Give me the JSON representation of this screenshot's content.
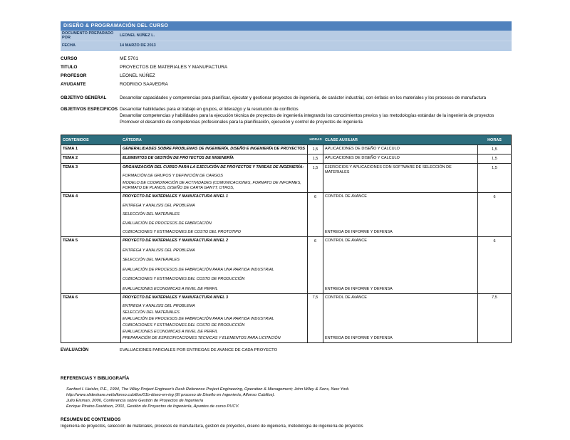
{
  "header": {
    "title": "DISEÑO & PROGRAMACIÓN DEL CURSO",
    "prepared_by_label": "DOCUMENTO PREPARADO POR",
    "prepared_by_value": "LEONEL NÚÑEZ L.",
    "date_label": "FECHA",
    "date_value": "14 MARZO DE 2013"
  },
  "course_info": [
    {
      "label": "CURSO",
      "value": "ME 5701"
    },
    {
      "label": "TITULO",
      "value": "PROYECTOS DE MATERIALES Y MANUFACTURA"
    },
    {
      "label": "PROFESOR",
      "value": "LEONEL NÚÑEZ"
    },
    {
      "label": "AYUDANTE",
      "value": "RODRIGO SAAVEDRA"
    }
  ],
  "objectives": {
    "general_label": "OBJETIVO GENERAL",
    "general_text": "Desarrollar capacidades y competencias para planificar, ejecutar y gestionar proyectos de ingeniería, de carácter industrial, con énfasis en los materiales y los procesos de manufactura",
    "specific_label": "OBJETIVOS ESPECIFICOS",
    "specific_items": [
      "Desarrollar habilidades para el trabajo en grupos, el liderazgo y la resolución de conflictos",
      "Desarrollar competencias y habilidades para la ejecución técnica de proyectos  de ingeniería integrando los conocimientos previos y las metodologías estándar de la ingeniería de proyectos",
      "Promover el desarrollo de competencias profesionales para la planificación, ejecución y control de proyectos de ingeniería"
    ]
  },
  "table": {
    "headers": [
      "CONTENIDOS",
      "CÁTEDRA",
      "HORAS",
      "CLASE AUXILIAR",
      "HORAS"
    ],
    "rows": [
      {
        "tema": "TEMA 1",
        "catedra_title": "GENERALIDADES SOBRE PROBLEMAS DE INGENIERÍA, DISEÑO E INGENIERÍA DE PROYECTOS",
        "catedra_items": [],
        "horas": "1,5",
        "aux": "APLICACIONES DE DISEÑO Y CALCULO",
        "aux_footer": "",
        "horas_aux": "1,5"
      },
      {
        "tema": "TEMA 2",
        "catedra_title": "ELEMENTOS DE GESTIÓN DE PROYECTOS DE INGENERÍA",
        "catedra_items": [],
        "horas": "1,5",
        "aux": "APLICACIONES DE DISEÑO Y CALCULO",
        "aux_footer": "",
        "horas_aux": "1,5"
      },
      {
        "tema": "TEMA 3",
        "catedra_title": "ORGANIZACIÓN DEL CURSO PARA LA EJECUCIÓN DE PROYECTOS Y TAREAS DE INGENIERÍA:",
        "catedra_items": [
          "FORMACIÓN DE GRUPOS Y DEFINICIÓN DE CARGOS",
          "MODELO DE COORDINACIÓN DE ACTIVIDADES (COMUNICACIONES, FORMATO DE INFORMES, FORMATO DE PLANOS, DISEÑO DE CARTA GANTT, OTROS,"
        ],
        "horas": "1,5",
        "aux": "EJERCICIOS Y APLICACIONES CON SOFTWARE DE SELECCIÓN DE MATERIALES",
        "aux_footer": "",
        "horas_aux": "1,5"
      },
      {
        "tema": "TEMA 4",
        "catedra_title": "PROYECTO DE MATERIALES Y MANUFACTURA NIVEL 1",
        "catedra_items": [
          "ENTREGA Y ANALISIS DEL PROBLEMA",
          "SELECCIÓN DEL MATERIALES",
          "EVALUACIÓN DE PROCESOS DE FABRICACIÓN",
          "CUBICACIONES Y ESTIMACIONES DE COSTO DEL PROTOTIPO"
        ],
        "horas": "6",
        "aux": "CONTROL DE AVANCE",
        "aux_footer": "ENTREGA DE INFORME Y DEFENSA",
        "horas_aux": "6"
      },
      {
        "tema": "TEMA 5",
        "catedra_title": "PROYECTO DE MATERIALES Y MANUFACTURA NIVEL 2",
        "catedra_items": [
          "ENTREGA Y ANALISIS DEL PROBLEMA",
          "SELECCIÓN DEL MATERIALES",
          "EVALUACIÓN DE PROCESOS DE FABRICACIÓN PARA UNA PARTIDA INDUSTRIAL",
          "CUBICACIONES Y ESTIMACIONES DEL COSTO DE PRODUCCIÓN",
          "EVALUACIONES ECONOMICAS A NIVEL DE PERFIL"
        ],
        "horas": "6",
        "aux": "CONTROL DE AVANCE",
        "aux_footer": "ENTREGA DE INFORME Y DEFENSA",
        "horas_aux": "6"
      },
      {
        "tema": "TEMA 6",
        "catedra_title": "PROYECTO DE MATERIALES Y MANUFACTURA NIVEL 3",
        "catedra_items": [
          "ENTREGA Y ANALISIS DEL PROBLEMA",
          "SELECCIÓN DEL MATERIALES",
          "EVALUACIÓN DE PROCESOS DE FABRICACIÓN PARA UNA PARTIDA INDUSTRIAL",
          "CUBICACIONES Y ESTIMACIONES DEL COSTO DE PRODUCCIÓN",
          "EVALUACIONES ECONOMICAS A NIVEL DE PERFIL",
          "PREPARACIÓN DE ESPECIFICACIONES TECNICAS Y ELEMENTOS PARA LICITACIÓN"
        ],
        "horas": "7,5",
        "aux": "CONTROL DE AVANCE",
        "aux_footer": "ENTREGA DE INFORME Y DEFENSA",
        "horas_aux": "7,5"
      }
    ]
  },
  "evaluation": {
    "label": "EVALUACIÓN",
    "value": "EVALUACIONES PARCIALES POR ENTREGAS DE AVANCE DE CADA PROYECTO"
  },
  "references": {
    "title": "REFERENCIAS Y BIBLIOGRAFÍA",
    "items": [
      "Sanford I. Heisler, P.E., 1994, The Wiley Project Engineer's Desk Reference Project  Engineering, Operation & Management; John Wiley & Sons, New York.",
      "http://www.slideshare.net/alfonso.cubillos/01b-diseo-en-ing (El proceso de Diseño en Ingeniería, Alfonso Cubillos).",
      "Julio Eisman, 2006, Conferencia sobre Gestión de Proyectos de Ingeniería",
      "Enrique Piraino Davidson, 2001, Gestión de Proyectos de Ingeniería, Apuntes de curso PUCV."
    ]
  },
  "summary": {
    "title": "RESUMEN DE CONTENIDOS",
    "text": "Ingeniería de proyectos, selección de materiales, procesos de manufactura, gestión de proyectos, diseño de ingeniería, metodología de ingeniería de proyectos"
  },
  "colors": {
    "banner_blue": "#4F81BD",
    "info_light_blue": "#B8CCE4",
    "info_text_navy": "#17375E",
    "table_header_teal": "#2D6E7E",
    "border_dark": "#262626"
  }
}
